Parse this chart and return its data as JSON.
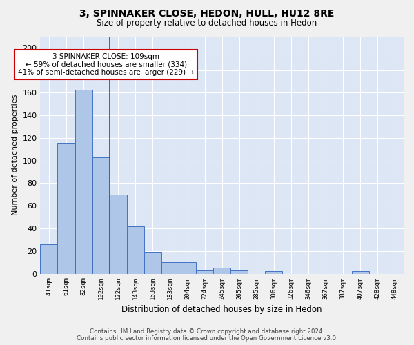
{
  "title": "3, SPINNAKER CLOSE, HEDON, HULL, HU12 8RE",
  "subtitle": "Size of property relative to detached houses in Hedon",
  "xlabel": "Distribution of detached houses by size in Hedon",
  "ylabel": "Number of detached properties",
  "bar_labels": [
    "41sqm",
    "61sqm",
    "82sqm",
    "102sqm",
    "122sqm",
    "143sqm",
    "163sqm",
    "183sqm",
    "204sqm",
    "224sqm",
    "245sqm",
    "265sqm",
    "285sqm",
    "306sqm",
    "326sqm",
    "346sqm",
    "367sqm",
    "387sqm",
    "407sqm",
    "428sqm",
    "448sqm"
  ],
  "bar_values": [
    26,
    116,
    163,
    103,
    70,
    42,
    19,
    10,
    10,
    3,
    5,
    3,
    0,
    2,
    0,
    0,
    0,
    0,
    2,
    0,
    0
  ],
  "bar_color": "#aec6e8",
  "bar_edge_color": "#4472c4",
  "background_color": "#dce6f5",
  "grid_color": "#ffffff",
  "red_line_x": 3.5,
  "annotation_text": "3 SPINNAKER CLOSE: 109sqm\n← 59% of detached houses are smaller (334)\n41% of semi-detached houses are larger (229) →",
  "annotation_box_color": "#ffffff",
  "annotation_box_edge_color": "#cc0000",
  "footer_text": "Contains HM Land Registry data © Crown copyright and database right 2024.\nContains public sector information licensed under the Open Government Licence v3.0.",
  "ylim": [
    0,
    210
  ],
  "yticks": [
    0,
    20,
    40,
    60,
    80,
    100,
    120,
    140,
    160,
    180,
    200
  ],
  "fig_bg": "#f0f0f0",
  "title_fontsize": 10,
  "subtitle_fontsize": 8.5
}
